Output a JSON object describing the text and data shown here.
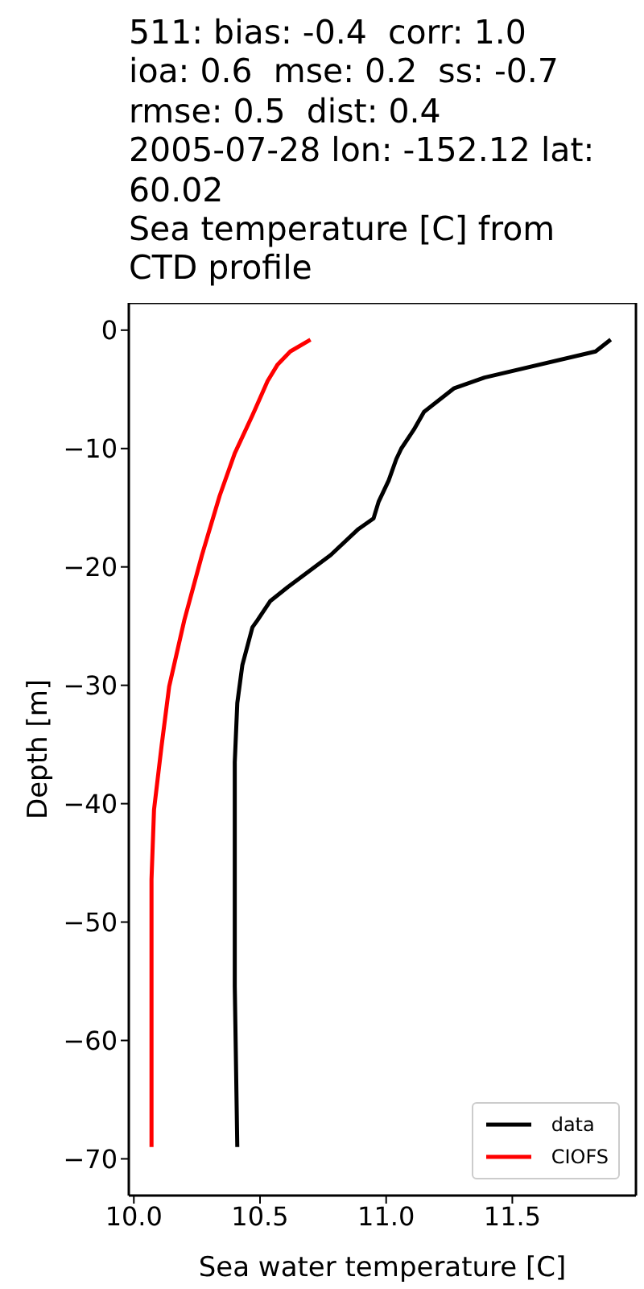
{
  "chart_data": {
    "type": "line",
    "title": "511: bias: -0.4  corr: 1.0\nioa: 0.6  mse: 0.2  ss: -0.7\nrmse: 0.5  dist: 0.4\n2005-07-28 lon: -152.12 lat:\n60.02\nSea temperature [C] from\nCTD profile",
    "xlabel": "Sea water temperature [C]",
    "ylabel": "Depth [m]",
    "series": [
      {
        "name": "data",
        "color": "#000000",
        "x": [
          11.89,
          11.83,
          11.39,
          11.27,
          11.15,
          11.11,
          11.06,
          11.04,
          11.01,
          10.97,
          10.95,
          10.89,
          10.78,
          10.61,
          10.54,
          10.49,
          10.47,
          10.43,
          10.41,
          10.4,
          10.4,
          10.41
        ],
        "values": [
          -0.8,
          -1.8,
          -4.0,
          -4.9,
          -6.9,
          -8.4,
          -10.0,
          -10.9,
          -12.7,
          -14.5,
          -15.9,
          -16.8,
          -19.0,
          -21.7,
          -22.9,
          -24.5,
          -25.1,
          -28.3,
          -31.5,
          -36.5,
          -55.4,
          -69
        ]
      },
      {
        "name": "CIOFS",
        "color": "#ff0000",
        "x": [
          10.7,
          10.62,
          10.57,
          10.53,
          10.47,
          10.4,
          10.34,
          10.27,
          10.2,
          10.14,
          10.11,
          10.08,
          10.07,
          10.07,
          10.07
        ],
        "values": [
          -0.8,
          -1.8,
          -2.9,
          -4.3,
          -7.2,
          -10.4,
          -14.0,
          -19.0,
          -24.5,
          -30.1,
          -35.1,
          -40.5,
          -46.4,
          -55.4,
          -69
        ]
      }
    ],
    "xlim": [
      9.98,
      11.99
    ],
    "xticks": [
      {
        "value": 10,
        "label": "10.0"
      },
      {
        "value": 10.5,
        "label": "10.5"
      },
      {
        "value": 11,
        "label": "11.0"
      },
      {
        "value": 11.5,
        "label": "11.5"
      }
    ],
    "ylim": [
      -73.1,
      2.3
    ],
    "yticks": [
      0,
      {
        "value": -10,
        "label": "−10"
      },
      {
        "value": -20,
        "label": "−20"
      },
      {
        "value": -30,
        "label": "−30"
      },
      {
        "value": -40,
        "label": "−40"
      },
      {
        "value": -50,
        "label": "−50"
      },
      {
        "value": -60,
        "label": "−60"
      },
      {
        "value": -70,
        "label": "−70"
      }
    ],
    "legend": "bottom right",
    "grid": false,
    "marker": "none",
    "line_style": "solid"
  }
}
